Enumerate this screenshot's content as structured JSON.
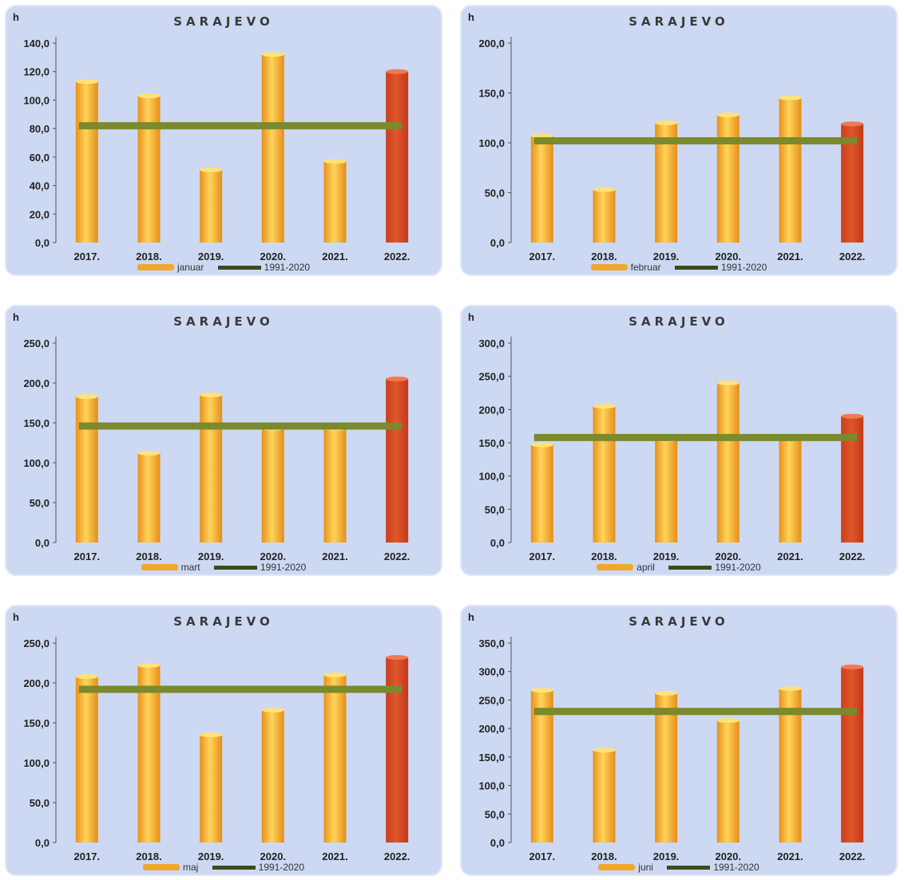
{
  "chart_data": [
    {
      "type": "bar",
      "title": "SARAJEVO",
      "ylabel": "h",
      "categories": [
        "2017.",
        "2018.",
        "2019.",
        "2020.",
        "2021.",
        "2022."
      ],
      "series": [
        {
          "name": "januar",
          "values": [
            113,
            103,
            51,
            132,
            57,
            120
          ]
        }
      ],
      "reference_line": {
        "name": "1991-2020",
        "value": 82
      },
      "ylim": [
        0,
        140
      ],
      "yticks": [
        "0,0",
        "20,0",
        "40,0",
        "60,0",
        "80,0",
        "100,0",
        "120,0",
        "140,0"
      ],
      "ytick_values": [
        0,
        20,
        40,
        60,
        80,
        100,
        120,
        140
      ],
      "highlight_last": true
    },
    {
      "type": "bar",
      "title": "SARAJEVO",
      "ylabel": "h",
      "categories": [
        "2017.",
        "2018.",
        "2019.",
        "2020.",
        "2021.",
        "2022."
      ],
      "series": [
        {
          "name": "februar",
          "values": [
            107,
            53,
            120,
            128,
            145,
            119
          ]
        }
      ],
      "reference_line": {
        "name": "1991-2020",
        "value": 102
      },
      "ylim": [
        0,
        200
      ],
      "yticks": [
        "0,0",
        "50,0",
        "100,0",
        "150,0",
        "200,0"
      ],
      "ytick_values": [
        0,
        50,
        100,
        150,
        200
      ],
      "highlight_last": true
    },
    {
      "type": "bar",
      "title": "SARAJEVO",
      "ylabel": "h",
      "categories": [
        "2017.",
        "2018.",
        "2019.",
        "2020.",
        "2021.",
        "2022."
      ],
      "series": [
        {
          "name": "mart",
          "values": [
            183,
            112,
            185,
            143,
            143,
            205
          ]
        }
      ],
      "reference_line": {
        "name": "1991-2020",
        "value": 146
      },
      "ylim": [
        0,
        250
      ],
      "yticks": [
        "0,0",
        "50,0",
        "100,0",
        "150,0",
        "200,0",
        "250,0"
      ],
      "ytick_values": [
        0,
        50,
        100,
        150,
        200,
        250
      ],
      "highlight_last": true
    },
    {
      "type": "bar",
      "title": "SARAJEVO",
      "ylabel": "h",
      "categories": [
        "2017.",
        "2018.",
        "2019.",
        "2020.",
        "2021.",
        "2022."
      ],
      "series": [
        {
          "name": "april",
          "values": [
            147,
            205,
            155,
            240,
            158,
            190
          ]
        }
      ],
      "reference_line": {
        "name": "1991-2020",
        "value": 158
      },
      "ylim": [
        0,
        300
      ],
      "yticks": [
        "0,0",
        "50,0",
        "100,0",
        "150,0",
        "200,0",
        "250,0",
        "300,0"
      ],
      "ytick_values": [
        0,
        50,
        100,
        150,
        200,
        250,
        300
      ],
      "highlight_last": true
    },
    {
      "type": "bar",
      "title": "SARAJEVO",
      "ylabel": "h",
      "categories": [
        "2017.",
        "2018.",
        "2019.",
        "2020.",
        "2021.",
        "2022."
      ],
      "series": [
        {
          "name": "maj",
          "values": [
            208,
            222,
            135,
            166,
            210,
            232
          ]
        }
      ],
      "reference_line": {
        "name": "1991-2020",
        "value": 192
      },
      "ylim": [
        0,
        250
      ],
      "yticks": [
        "0,0",
        "50,0",
        "100,0",
        "150,0",
        "200,0",
        "250,0"
      ],
      "ytick_values": [
        0,
        50,
        100,
        150,
        200,
        250
      ],
      "highlight_last": true
    },
    {
      "type": "bar",
      "title": "SARAJEVO",
      "ylabel": "h",
      "categories": [
        "2017.",
        "2018.",
        "2019.",
        "2020.",
        "2021.",
        "2022."
      ],
      "series": [
        {
          "name": "juni",
          "values": [
            267,
            162,
            262,
            214,
            270,
            308
          ]
        }
      ],
      "reference_line": {
        "name": "1991-2020",
        "value": 230
      },
      "ylim": [
        0,
        350
      ],
      "yticks": [
        "0,0",
        "50,0",
        "100,0",
        "150,0",
        "200,0",
        "250,0",
        "300,0",
        "350,0"
      ],
      "ytick_values": [
        0,
        50,
        100,
        150,
        200,
        250,
        300,
        350
      ],
      "highlight_last": true
    }
  ],
  "colors": {
    "bar": "#f0a82c",
    "bar_highlight": "#e0562a",
    "reference_line": "#7a8a2c",
    "panel": "#cdd8f2"
  }
}
